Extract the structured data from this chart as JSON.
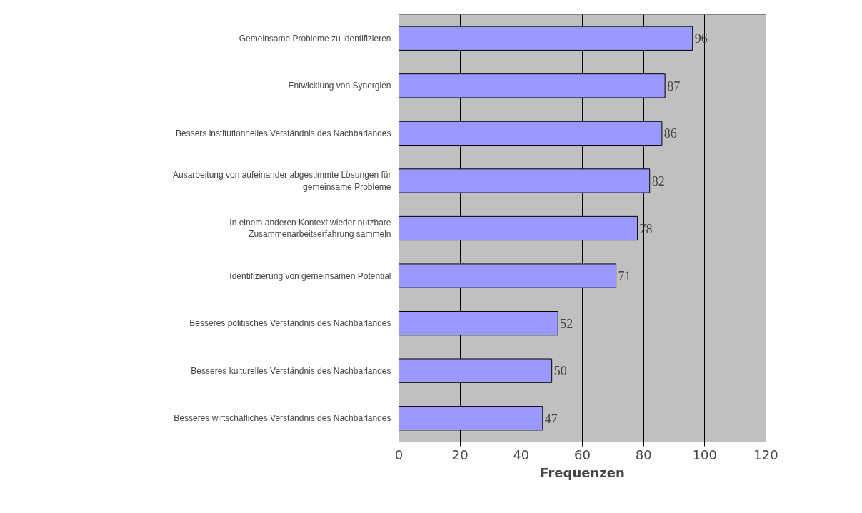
{
  "chart_data": {
    "type": "bar",
    "orientation": "horizontal",
    "xlabel": "Frequenzen",
    "categories": [
      "Gemeinsame Probleme zu identifizieren",
      "Entwicklung von Synergien",
      "Bessers institutionnelles Verständnis des Nachbarlandes",
      "Ausarbeitung von aufeinander abgestimmte Lösungen für gemeinsame Probleme",
      "In einem anderen Kontext wieder nutzbare Zusammenarbeitserfahrung sammeln",
      "Identifizierung von gemeinsamen Potential",
      "Besseres politisches Verständnis des Nachbarlandes",
      "Besseres kulturelles Verständnis des Nachbarlandes",
      "Besseres wirtschafliches Verständnis des Nachbarlandes"
    ],
    "values": [
      96,
      87,
      86,
      82,
      78,
      71,
      52,
      50,
      47
    ],
    "color": "#9999ff",
    "xlim": [
      0,
      120
    ],
    "xticks": [
      0,
      20,
      40,
      60,
      80,
      100,
      120
    ],
    "grid": "x",
    "data_labels": true
  }
}
